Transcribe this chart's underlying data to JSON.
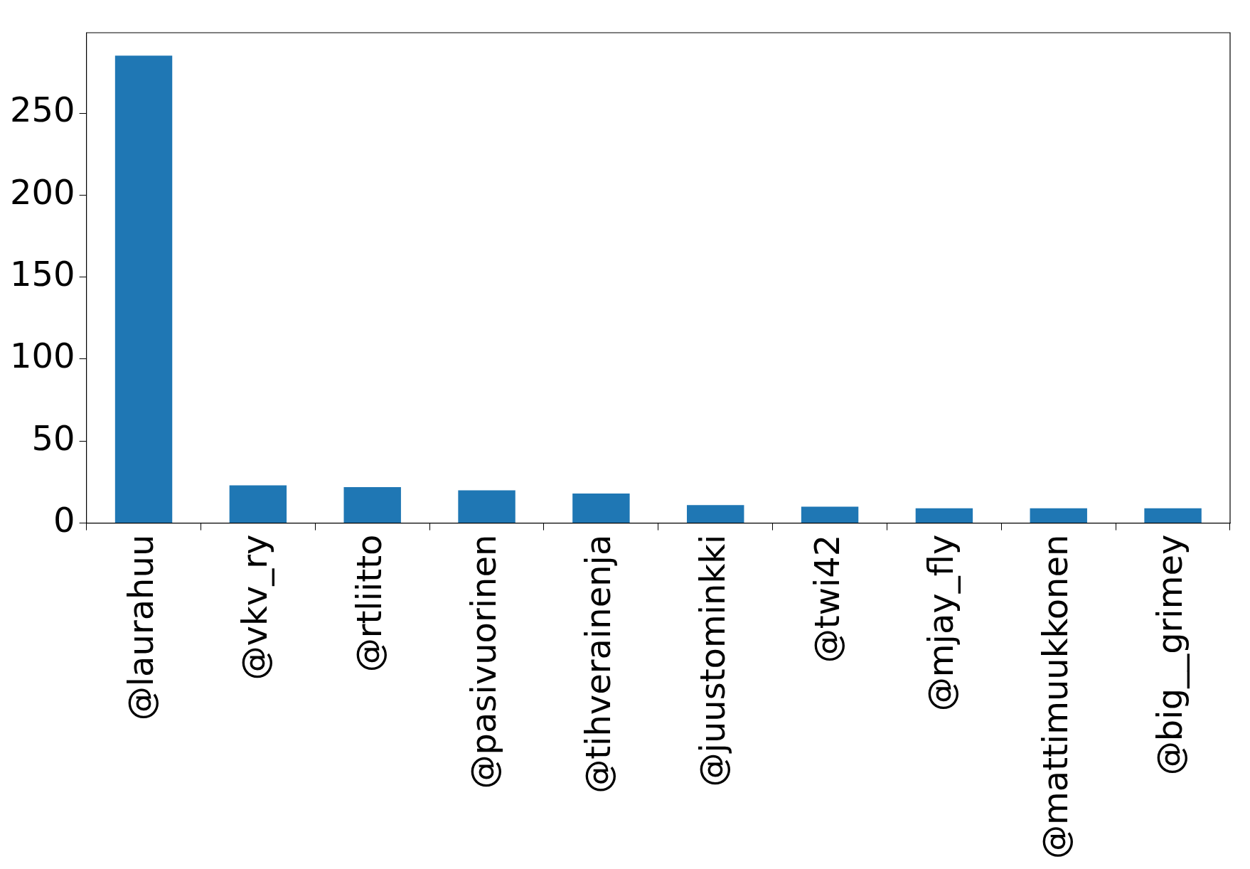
{
  "chart_data": {
    "type": "bar",
    "categories": [
      "@laurahuu",
      "@vkv_ry",
      "@rtliitto",
      "@pasivuorinen",
      "@tihverainenja",
      "@juustominkki",
      "@twi42",
      "@mjay_fly",
      "@mattimuukkonen",
      "@big__grimey"
    ],
    "values": [
      285,
      23,
      22,
      20,
      18,
      11,
      10,
      9,
      9,
      9
    ],
    "color": "#1f77b4",
    "ylim": [
      0,
      299
    ],
    "yticks": [
      0,
      50,
      100,
      150,
      200,
      250
    ],
    "grid": false,
    "legend": false
  }
}
